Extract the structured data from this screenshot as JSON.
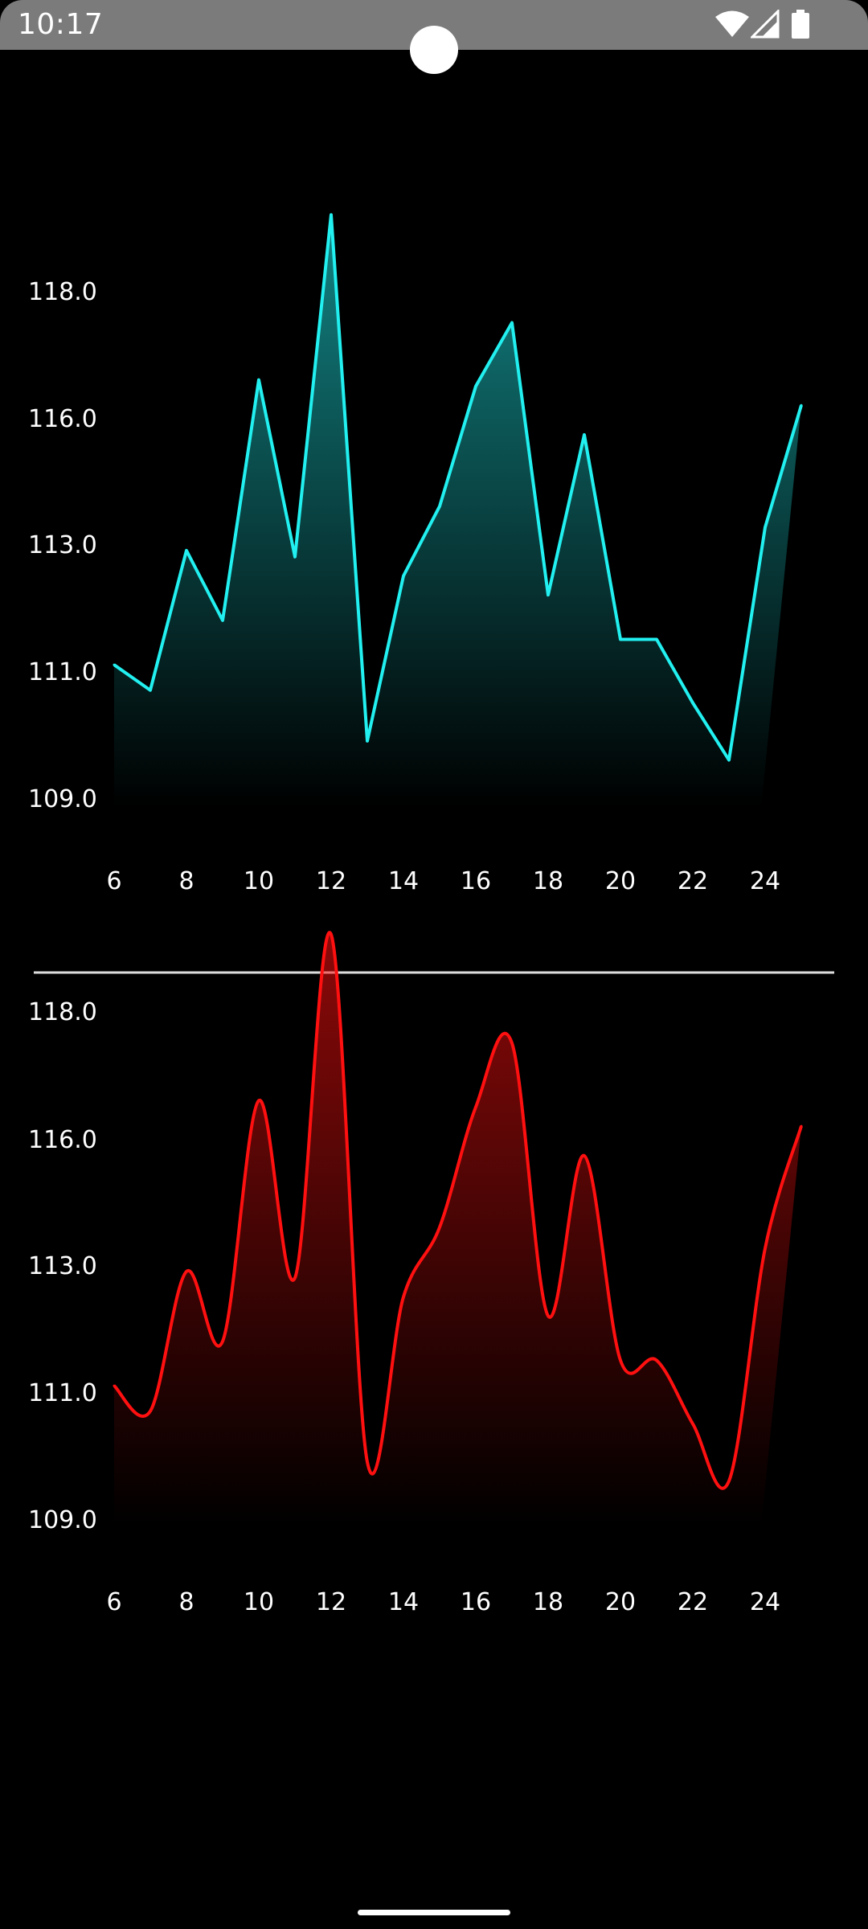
{
  "status_bar": {
    "time": "10:17",
    "icons": [
      "wifi-icon",
      "cellular-signal-icon",
      "battery-icon"
    ]
  },
  "colors": {
    "line_chart": "#22f0f0",
    "cubic_chart": "#ff1010",
    "background": "#000000",
    "divider": "#dddddd"
  },
  "chart_data": [
    {
      "type": "area",
      "curve": "linear",
      "x": [
        6,
        7,
        8,
        9,
        10,
        11,
        12,
        13,
        14,
        15,
        16,
        17,
        18,
        19,
        20,
        21,
        22,
        23,
        24,
        25
      ],
      "values": [
        111.1,
        110.7,
        112.9,
        111.8,
        116.6,
        112.8,
        119.2,
        109.9,
        112.5,
        113.9,
        116.5,
        117.5,
        112.2,
        115.6,
        111.5,
        111.5,
        110.5,
        109.6,
        113.4,
        116.2
      ],
      "y_ticks": [
        "118.0",
        "116.0",
        "113.0",
        "111.0",
        "109.0"
      ],
      "x_ticks": [
        "6",
        "8",
        "10",
        "12",
        "14",
        "16",
        "18",
        "20",
        "22",
        "24"
      ],
      "ylim": [
        109.0,
        118.0
      ],
      "grid": false,
      "legend": "none"
    },
    {
      "type": "area",
      "curve": "cubic",
      "x": [
        6,
        7,
        8,
        9,
        10,
        11,
        12,
        13,
        14,
        15,
        16,
        17,
        18,
        19,
        20,
        21,
        22,
        23,
        24,
        25
      ],
      "values": [
        111.1,
        110.7,
        112.9,
        111.8,
        116.6,
        112.8,
        119.2,
        109.9,
        112.5,
        113.9,
        116.5,
        117.5,
        112.2,
        115.6,
        111.5,
        111.5,
        110.5,
        109.6,
        113.4,
        116.2
      ],
      "y_ticks": [
        "118.0",
        "116.0",
        "113.0",
        "111.0",
        "109.0"
      ],
      "x_ticks": [
        "6",
        "8",
        "10",
        "12",
        "14",
        "16",
        "18",
        "20",
        "22",
        "24"
      ],
      "ylim": [
        109.0,
        118.0
      ],
      "grid": false,
      "legend": "none"
    }
  ]
}
